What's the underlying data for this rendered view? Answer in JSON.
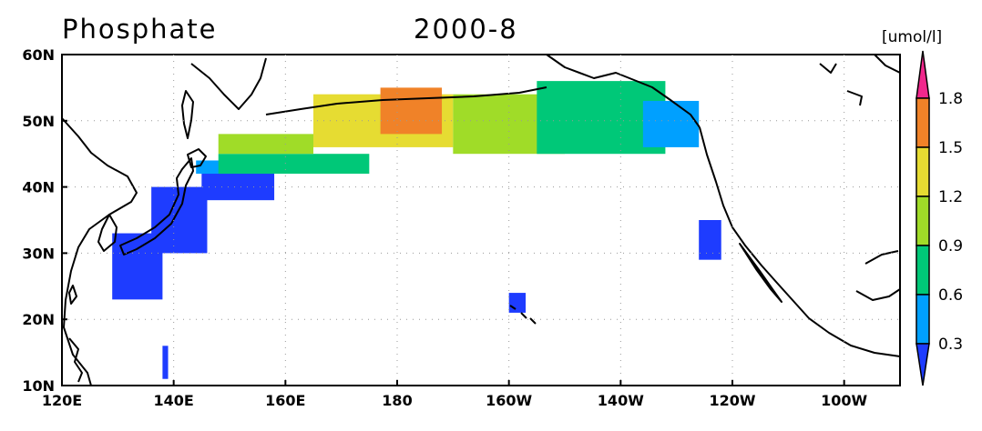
{
  "header": {
    "variable": "Phosphate",
    "period": "2000-8",
    "units": "[umol/l]"
  },
  "axes": {
    "longitude_ticks": [
      "120E",
      "140E",
      "160E",
      "180",
      "160W",
      "140W",
      "120W",
      "100W"
    ],
    "latitude_ticks": [
      "60N",
      "50N",
      "40N",
      "30N",
      "20N",
      "10N"
    ]
  },
  "colorbar": {
    "levels": [
      "0.3",
      "0.6",
      "0.9",
      "1.2",
      "1.5",
      "1.8"
    ],
    "colors": [
      "#1e3cff",
      "#00a0ff",
      "#00c878",
      "#a0dc28",
      "#e6dc32",
      "#f08228",
      "#f0288c"
    ]
  },
  "chart_data": {
    "type": "heatmap",
    "variable": "Phosphate",
    "period": "2000-8",
    "units": "umol/l",
    "lon_range": [
      120,
      270
    ],
    "lat_range": [
      10,
      60
    ],
    "contour_levels": [
      0.3,
      0.6,
      0.9,
      1.2,
      1.5,
      1.8
    ],
    "colors": [
      "#1e3cff",
      "#00a0ff",
      "#00c878",
      "#a0dc28",
      "#e6dc32",
      "#f08228",
      "#f0288c"
    ],
    "regions": [
      {
        "lon": [
          129,
          138
        ],
        "lat": [
          23,
          33
        ],
        "value": 0.2
      },
      {
        "lon": [
          136,
          146
        ],
        "lat": [
          30,
          40
        ],
        "value": 0.2
      },
      {
        "lon": [
          145,
          158
        ],
        "lat": [
          38,
          43
        ],
        "value": 0.2
      },
      {
        "lon": [
          138,
          139
        ],
        "lat": [
          11,
          16
        ],
        "value": 0.2
      },
      {
        "lon": [
          144,
          150
        ],
        "lat": [
          42,
          44
        ],
        "value": 0.5
      },
      {
        "lon": [
          148,
          175
        ],
        "lat": [
          42,
          45
        ],
        "value": 0.7
      },
      {
        "lon": [
          148,
          165
        ],
        "lat": [
          45,
          48
        ],
        "value": 1.0
      },
      {
        "lon": [
          165,
          190
        ],
        "lat": [
          46,
          54
        ],
        "value": 1.3
      },
      {
        "lon": [
          177,
          188
        ],
        "lat": [
          48,
          55
        ],
        "value": 1.6
      },
      {
        "lon": [
          190,
          210
        ],
        "lat": [
          45,
          54
        ],
        "value": 1.0
      },
      {
        "lon": [
          205,
          228
        ],
        "lat": [
          45,
          56
        ],
        "value": 0.8
      },
      {
        "lon": [
          224,
          234
        ],
        "lat": [
          46,
          53
        ],
        "value": 0.5
      },
      {
        "lon": [
          234,
          238
        ],
        "lat": [
          29,
          35
        ],
        "value": 0.2
      },
      {
        "lon": [
          200,
          203
        ],
        "lat": [
          21,
          24
        ],
        "value": 0.2
      }
    ]
  }
}
